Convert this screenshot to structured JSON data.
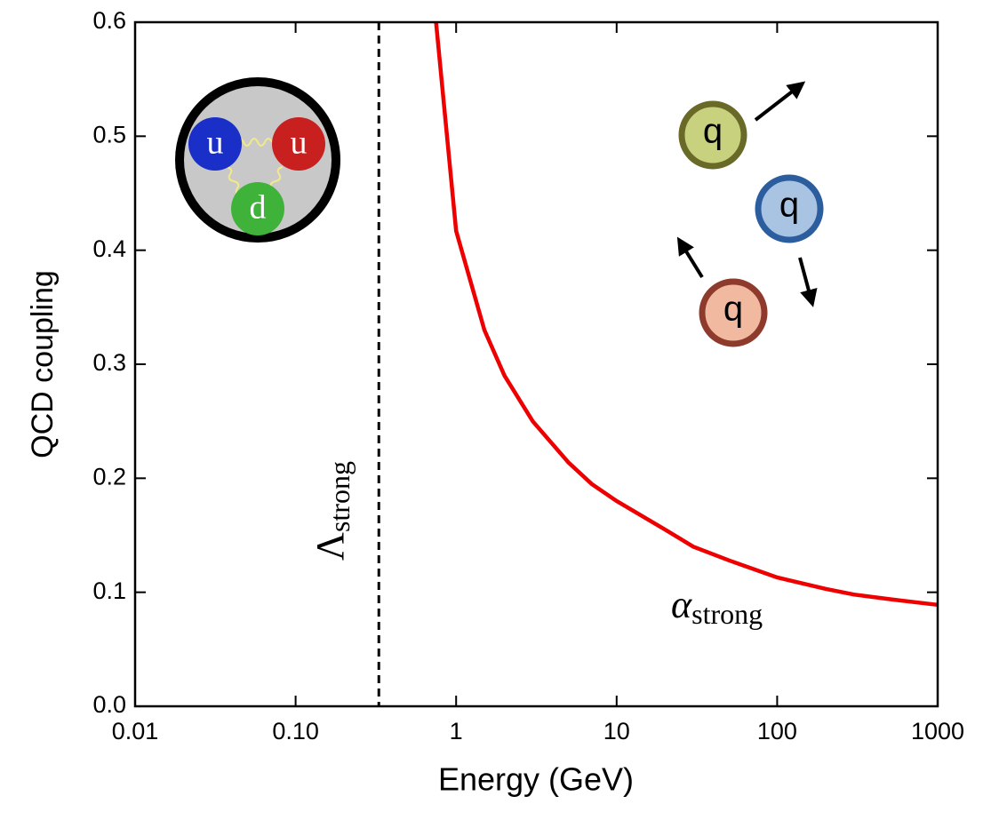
{
  "chart_data": {
    "type": "line",
    "x_label": "Energy (GeV)",
    "y_label": "QCD coupling",
    "xscale": "log",
    "xlim": [
      0.01,
      1000
    ],
    "xticks": [
      0.01,
      {
        "value": 0.1,
        "label": "0.10"
      },
      1,
      10,
      100,
      1000
    ],
    "ylim": [
      0,
      0.6
    ],
    "yticks": [
      {
        "value": 0,
        "label": "0.0"
      },
      0.1,
      0.2,
      0.3,
      0.4,
      0.5,
      0.6
    ],
    "color": "#ee0000",
    "x": [
      0.75,
      1,
      1.5,
      2,
      3,
      5,
      7,
      10,
      20,
      30,
      50,
      100,
      200,
      300,
      500,
      1000
    ],
    "values": [
      0.6,
      0.417,
      0.33,
      0.29,
      0.25,
      0.214,
      0.195,
      0.18,
      0.155,
      0.14,
      0.128,
      0.113,
      0.103,
      0.098,
      0.094,
      0.089
    ],
    "vline": {
      "x": 0.33,
      "symbol": "Λ",
      "subscript": "strong"
    },
    "curve_label": {
      "symbol": "α",
      "subscript": "strong"
    },
    "proton_quarks": [
      "u",
      "u",
      "d"
    ],
    "free_quarks": [
      "q",
      "q",
      "q"
    ]
  }
}
